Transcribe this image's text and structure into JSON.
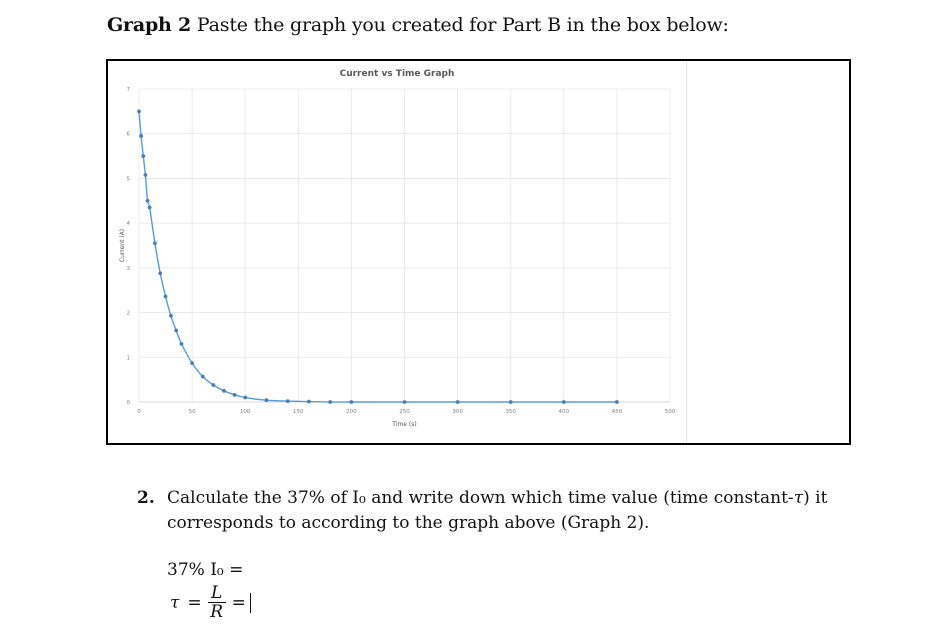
{
  "heading": {
    "bold": "Graph 2",
    "text": " Paste the graph you created for Part B in the box below:"
  },
  "chart_data": {
    "type": "scatter",
    "title": "Current vs Time Graph",
    "xlabel": "Time (s)",
    "ylabel": "Current (A)",
    "xlim": [
      0,
      500
    ],
    "ylim": [
      0,
      7
    ],
    "xticks": [
      0,
      50,
      100,
      150,
      200,
      250,
      300,
      350,
      400,
      450,
      500
    ],
    "yticks": [
      0,
      1,
      2,
      3,
      4,
      5,
      6,
      7
    ],
    "grid": true,
    "legend": "none",
    "series": [
      {
        "name": "Current (A)",
        "color": "#5b9bd5",
        "marker_color": "#4a7ebb",
        "style": "smooth line with markers",
        "x": [
          0,
          2,
          4,
          6,
          8,
          10,
          15,
          20,
          25,
          30,
          35,
          40,
          50,
          60,
          70,
          80,
          90,
          100,
          120,
          140,
          160,
          180,
          200,
          250,
          300,
          350,
          400,
          450
        ],
        "y": [
          6.5,
          5.95,
          5.5,
          5.08,
          4.5,
          4.35,
          3.55,
          2.88,
          2.36,
          1.93,
          1.6,
          1.3,
          0.87,
          0.57,
          0.38,
          0.25,
          0.16,
          0.1,
          0.04,
          0.02,
          0.01,
          0.0,
          0.0,
          0.0,
          0.0,
          0.0,
          0.0,
          0.0
        ]
      }
    ]
  },
  "question": {
    "number": "2.",
    "line1": "Calculate the 37% of I₀ and write down which time value (time constant-",
    "tau": "τ",
    "line1_end": ") it",
    "line2": "corresponds to according to the graph above (Graph 2)."
  },
  "formula": {
    "percent_label": "37% I₀ =",
    "tau": "τ",
    "equals": "=",
    "numerator": "L",
    "denominator": "R",
    "equals2": "="
  }
}
